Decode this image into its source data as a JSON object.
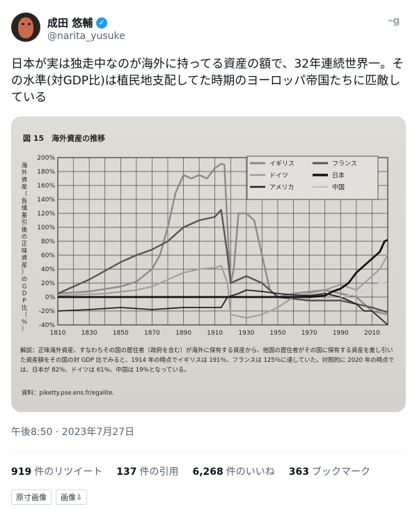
{
  "author": {
    "name": "成田 悠輔",
    "handle": "@narita_yusuke",
    "verified_icon": "verified-badge-icon"
  },
  "tweet": {
    "text": "日本が実は独走中なのが海外に持ってる資産の額で、32年連続世界一。その水準(対GDP比)は植民地支配してた時期のヨーロッパ帝国たちに匹敵している",
    "timestamp": "午後8:50 · 2023年7月27日"
  },
  "stats": [
    {
      "count": "919",
      "label": "件のリツイート"
    },
    {
      "count": "137",
      "label": "件の引用"
    },
    {
      "count": "6,268",
      "label": "件のいいね"
    },
    {
      "count": "363",
      "label": "ブックマーク"
    }
  ],
  "buttons": {
    "original_image": "原寸画像",
    "image_down": "画像⇩"
  },
  "chart_data": {
    "type": "line",
    "title": "図 15　海外資産の推移",
    "ylabel": "海外資産（負債差引後の正味資産）のGDP比（％）",
    "xlabel": "",
    "x_ticks": [
      "1810",
      "1830",
      "1850",
      "1870",
      "1890",
      "1910",
      "1930",
      "1950",
      "1970",
      "1990",
      "2010"
    ],
    "y_ticks": [
      "200%",
      "180%",
      "160%",
      "140%",
      "120%",
      "100%",
      "80%",
      "60%",
      "40%",
      "20%",
      "0%",
      "-20%",
      "-40%"
    ],
    "xlim": [
      1810,
      2020
    ],
    "ylim": [
      -40,
      200
    ],
    "grid": true,
    "legend_position": "top-right",
    "legend": [
      "イギリス",
      "フランス",
      "ドイツ",
      "日本",
      "アメリカ",
      "中国"
    ],
    "series": [
      {
        "name": "イギリス",
        "color": "#8a8a8a",
        "width": 2.4,
        "points": [
          [
            1810,
            5
          ],
          [
            1830,
            8
          ],
          [
            1850,
            15
          ],
          [
            1860,
            22
          ],
          [
            1870,
            40
          ],
          [
            1875,
            60
          ],
          [
            1880,
            100
          ],
          [
            1885,
            150
          ],
          [
            1890,
            175
          ],
          [
            1895,
            170
          ],
          [
            1900,
            175
          ],
          [
            1905,
            170
          ],
          [
            1910,
            185
          ],
          [
            1914,
            191
          ],
          [
            1916,
            190
          ],
          [
            1918,
            100
          ],
          [
            1920,
            20
          ],
          [
            1922,
            40
          ],
          [
            1925,
            120
          ],
          [
            1930,
            120
          ],
          [
            1935,
            110
          ],
          [
            1940,
            60
          ],
          [
            1945,
            10
          ],
          [
            1950,
            0
          ],
          [
            1960,
            5
          ],
          [
            1980,
            10
          ],
          [
            2000,
            0
          ],
          [
            2010,
            -20
          ],
          [
            2020,
            -25
          ]
        ]
      },
      {
        "name": "フランス",
        "color": "#555555",
        "width": 2.4,
        "points": [
          [
            1810,
            5
          ],
          [
            1830,
            25
          ],
          [
            1850,
            50
          ],
          [
            1860,
            60
          ],
          [
            1870,
            68
          ],
          [
            1880,
            80
          ],
          [
            1890,
            100
          ],
          [
            1900,
            110
          ],
          [
            1910,
            115
          ],
          [
            1914,
            125
          ],
          [
            1918,
            60
          ],
          [
            1920,
            20
          ],
          [
            1930,
            30
          ],
          [
            1940,
            20
          ],
          [
            1950,
            0
          ],
          [
            1970,
            -5
          ],
          [
            1990,
            -5
          ],
          [
            2000,
            -10
          ],
          [
            2010,
            -15
          ],
          [
            2020,
            -22
          ]
        ]
      },
      {
        "name": "ドイツ",
        "color": "#9c9c9c",
        "width": 2.0,
        "points": [
          [
            1810,
            2
          ],
          [
            1840,
            5
          ],
          [
            1860,
            10
          ],
          [
            1870,
            15
          ],
          [
            1880,
            25
          ],
          [
            1890,
            35
          ],
          [
            1900,
            40
          ],
          [
            1910,
            42
          ],
          [
            1914,
            45
          ],
          [
            1918,
            20
          ],
          [
            1920,
            -25
          ],
          [
            1930,
            -30
          ],
          [
            1940,
            -25
          ],
          [
            1950,
            -15
          ],
          [
            1960,
            0
          ],
          [
            1970,
            5
          ],
          [
            1980,
            10
          ],
          [
            1990,
            18
          ],
          [
            2000,
            10
          ],
          [
            2010,
            30
          ],
          [
            2015,
            40
          ],
          [
            2020,
            61
          ]
        ]
      },
      {
        "name": "日本",
        "color": "#111111",
        "width": 2.8,
        "points": [
          [
            1810,
            0
          ],
          [
            1850,
            0
          ],
          [
            1900,
            0
          ],
          [
            1950,
            0
          ],
          [
            1960,
            0
          ],
          [
            1970,
            0
          ],
          [
            1980,
            2
          ],
          [
            1985,
            8
          ],
          [
            1990,
            12
          ],
          [
            1995,
            20
          ],
          [
            2000,
            35
          ],
          [
            2005,
            45
          ],
          [
            2010,
            55
          ],
          [
            2015,
            65
          ],
          [
            2018,
            80
          ],
          [
            2020,
            82
          ]
        ]
      },
      {
        "name": "アメリカ",
        "color": "#222222",
        "width": 1.8,
        "points": [
          [
            1810,
            -20
          ],
          [
            1830,
            -18
          ],
          [
            1850,
            -15
          ],
          [
            1870,
            -18
          ],
          [
            1890,
            -15
          ],
          [
            1910,
            -15
          ],
          [
            1914,
            -15
          ],
          [
            1918,
            0
          ],
          [
            1925,
            5
          ],
          [
            1930,
            10
          ],
          [
            1940,
            8
          ],
          [
            1950,
            5
          ],
          [
            1960,
            3
          ],
          [
            1970,
            2
          ],
          [
            1980,
            5
          ],
          [
            1990,
            0
          ],
          [
            2000,
            -10
          ],
          [
            2005,
            -20
          ],
          [
            2010,
            -20
          ],
          [
            2015,
            -30
          ],
          [
            2020,
            -40
          ]
        ]
      },
      {
        "name": "中国",
        "color": "#bcbcbc",
        "width": 1.6,
        "points": [
          [
            1990,
            0
          ],
          [
            1995,
            2
          ],
          [
            2000,
            5
          ],
          [
            2005,
            8
          ],
          [
            2010,
            15
          ],
          [
            2015,
            20
          ],
          [
            2020,
            19
          ]
        ]
      }
    ]
  },
  "caption": {
    "text": "解説：正味海外資産、すなわちその国の居住者（政府を含む）が海外に保有する資産から、他国の居住者がその国に保有する資産を差し引いた資産額をその国の対 GDP 比でみると、1914 年の時点でイギリスは 191％、フランスは 125％に達していた。対照的に 2020 年の時点では、日本が 82％、ドイツは 61％、中国は 19％となっている。",
    "source": "資料：piketty.pse.ens.fr/egalite."
  }
}
